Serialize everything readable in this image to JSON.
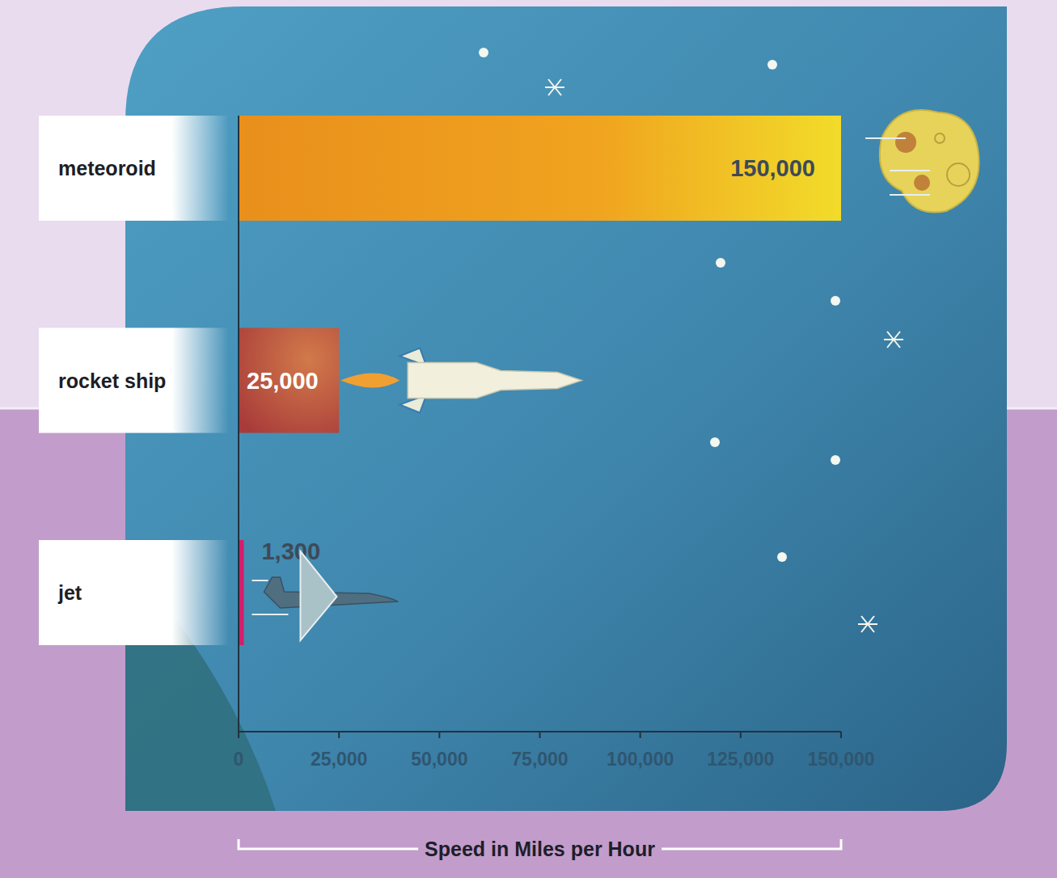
{
  "chart_data": {
    "type": "bar",
    "orientation": "horizontal",
    "categories": [
      "meteoroid",
      "rocket ship",
      "jet"
    ],
    "values": [
      150000,
      25000,
      1300
    ],
    "value_labels": [
      "150,000",
      "25,000",
      "1,300"
    ],
    "colors": [
      "#f0a41f",
      "#b4473c",
      "#d01f6b"
    ],
    "data_labels": true,
    "xlabel": "Speed in Miles per Hour",
    "xlim": [
      0,
      150000
    ],
    "xticks": [
      0,
      {
        "value": 25000,
        "label": "25,000"
      },
      {
        "value": 50000,
        "label": "50,000"
      },
      {
        "value": 75000,
        "label": "75,000"
      },
      {
        "value": 100000,
        "label": "100,000"
      },
      {
        "value": 125000,
        "label": "125,000"
      },
      {
        "value": 150000,
        "label": "150,000"
      }
    ],
    "grid": false
  }
}
